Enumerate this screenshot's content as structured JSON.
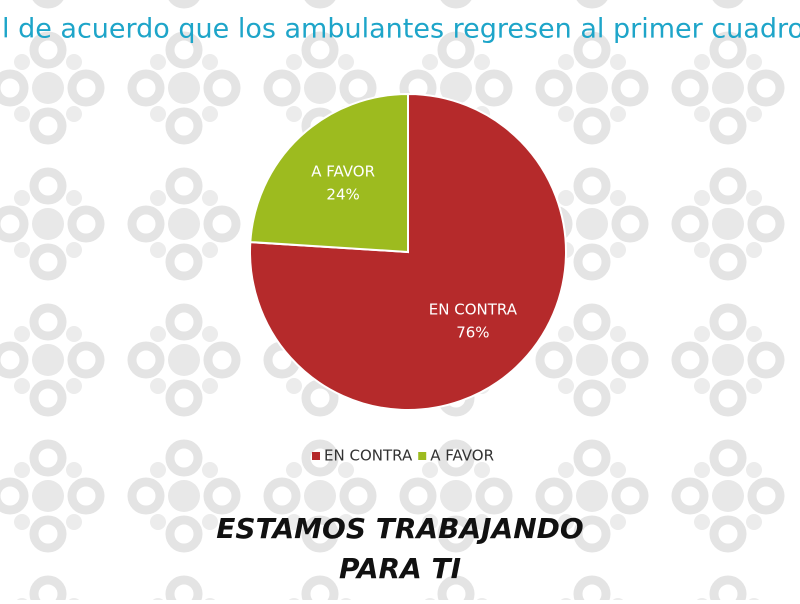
{
  "chart_data": {
    "type": "pie",
    "title": "l de acuerdo que los ambulantes regresen al primer cuadro d",
    "categories": [
      "EN CONTRA",
      "A FAVOR"
    ],
    "values": [
      76,
      24
    ],
    "value_labels": [
      "76%",
      "24%"
    ],
    "colors": [
      "#b52a2b",
      "#9dbb1f"
    ],
    "legend": "bottom"
  },
  "footer": [
    "ESTAMOS TRABAJANDO",
    "PARA TI"
  ]
}
